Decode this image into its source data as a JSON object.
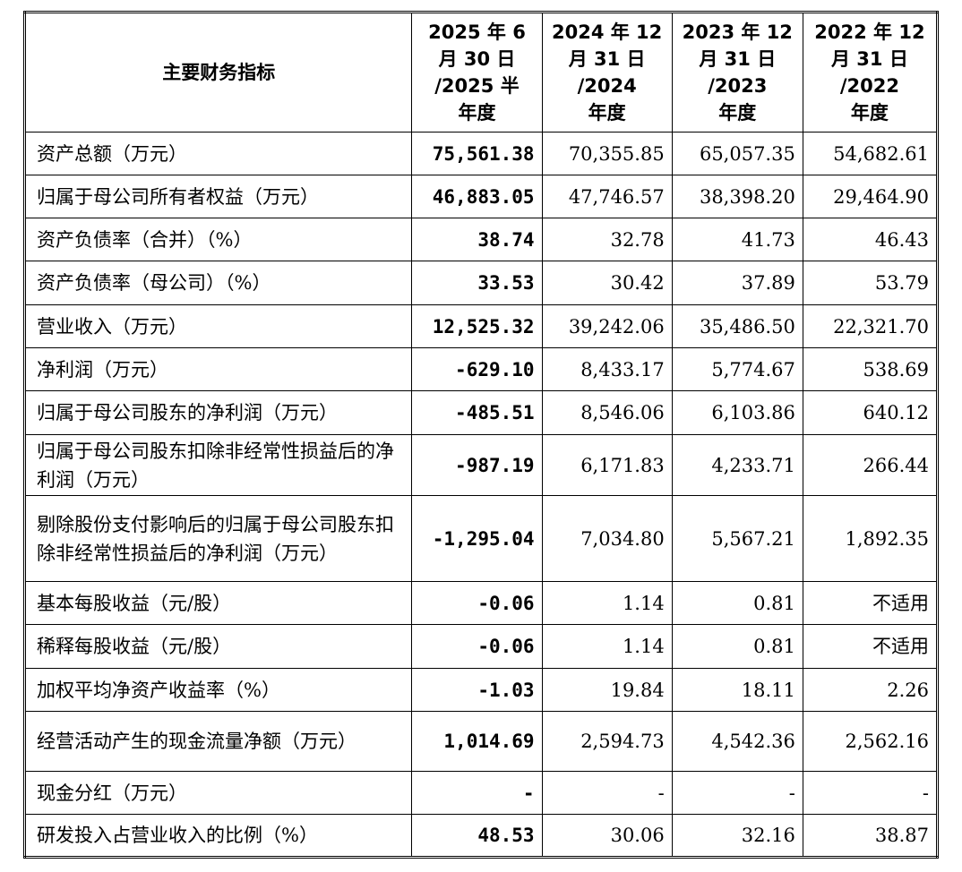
{
  "header": {
    "label": "主要财务指标",
    "columns": [
      [
        "2025 年 6",
        "月 30 日",
        "/2025 半",
        "年度"
      ],
      [
        "2024 年 12",
        "月 31 日",
        "/2024",
        "年度"
      ],
      [
        "2023 年 12",
        "月 31 日",
        "/2023",
        "年度"
      ],
      [
        "2022 年 12",
        "月 31 日",
        "/2022",
        "年度"
      ]
    ]
  },
  "table": {
    "rows": [
      [
        "资产总额（万元）",
        "75,561.38",
        "70,355.85",
        "65,057.35",
        "54,682.61"
      ],
      [
        "归属于母公司所有者权益（万元）",
        "46,883.05",
        "47,746.57",
        "38,398.20",
        "29,464.90"
      ],
      [
        "资产负债率（合并）（%）",
        "38.74",
        "32.78",
        "41.73",
        "46.43"
      ],
      [
        "资产负债率（母公司）（%）",
        "33.53",
        "30.42",
        "37.89",
        "53.79"
      ],
      [
        "营业收入（万元）",
        "12,525.32",
        "39,242.06",
        "35,486.50",
        "22,321.70"
      ],
      [
        "净利润（万元）",
        "-629.10",
        "8,433.17",
        "5,774.67",
        "538.69"
      ],
      [
        "归属于母公司股东的净利润（万元）",
        "-485.51",
        "8,546.06",
        "6,103.86",
        "640.12"
      ],
      [
        "归属于母公司股东扣除非经常性损益后的净利润（万元）",
        "-987.19",
        "6,171.83",
        "4,233.71",
        "266.44"
      ],
      [
        "剔除股份支付影响后的归属于母公司股东扣除非经常性损益后的净利润（万元）",
        "-1,295.04",
        "7,034.80",
        "5,567.21",
        "1,892.35"
      ],
      [
        "基本每股收益（元/股）",
        "-0.06",
        "1.14",
        "0.81",
        "不适用"
      ],
      [
        "稀释每股收益（元/股）",
        "-0.06",
        "1.14",
        "0.81",
        "不适用"
      ],
      [
        "加权平均净资产收益率（%）",
        "-1.03",
        "19.84",
        "18.11",
        "2.26"
      ],
      [
        "经营活动产生的现金流量净额（万元）",
        "1,014.69",
        "2,594.73",
        "4,542.36",
        "2,562.16"
      ],
      [
        "现金分红（万元）",
        "-",
        "-",
        "-",
        "-"
      ],
      [
        "研发投入占营业收入的比例（%）",
        "48.53",
        "30.06",
        "32.16",
        "38.87"
      ]
    ]
  }
}
